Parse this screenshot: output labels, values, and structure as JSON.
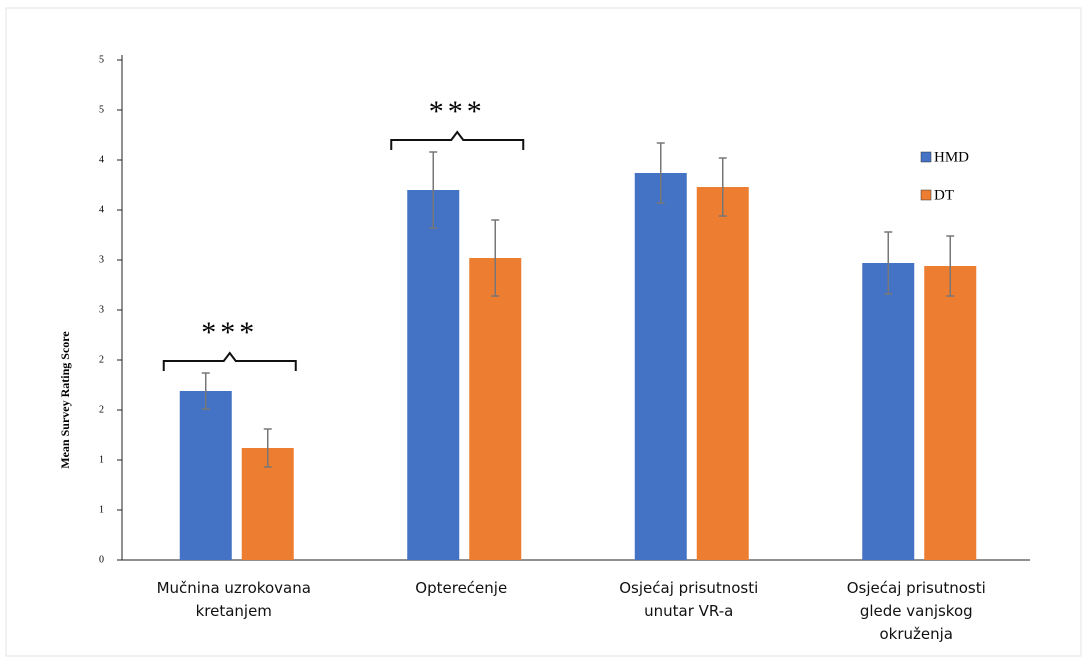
{
  "chart_data": {
    "type": "bar",
    "y_label": "Mean Survey Rating Score",
    "categories": [
      "Mučnina uzrokovana\nkretanjem",
      "Opterećenje",
      "Osjećaj prisutnosti\nunutar VR-a",
      "Osjećaj prisutnosti\nglede vanjskog\nokruženja"
    ],
    "series": [
      {
        "name": "HMD",
        "color": "#4472c4",
        "values": [
          1.69,
          3.7,
          3.87,
          2.97
        ],
        "errors": [
          0.18,
          0.38,
          0.3,
          0.31
        ]
      },
      {
        "name": "DT",
        "color": "#ed7d31",
        "values": [
          1.12,
          3.02,
          3.73,
          2.94
        ],
        "errors": [
          0.19,
          0.38,
          0.29,
          0.3
        ]
      }
    ],
    "annotations": [
      "***",
      "***"
    ],
    "ylim": [
      0,
      5
    ],
    "yticks": [
      0,
      {
        "value": 0.5,
        "label": "1"
      },
      1,
      {
        "value": 1.5,
        "label": "2"
      },
      2,
      {
        "value": 2.5,
        "label": "3"
      },
      3,
      {
        "value": 3.5,
        "label": "4"
      },
      4,
      {
        "value": 4.5,
        "label": "5"
      },
      5
    ],
    "legend": "right"
  }
}
